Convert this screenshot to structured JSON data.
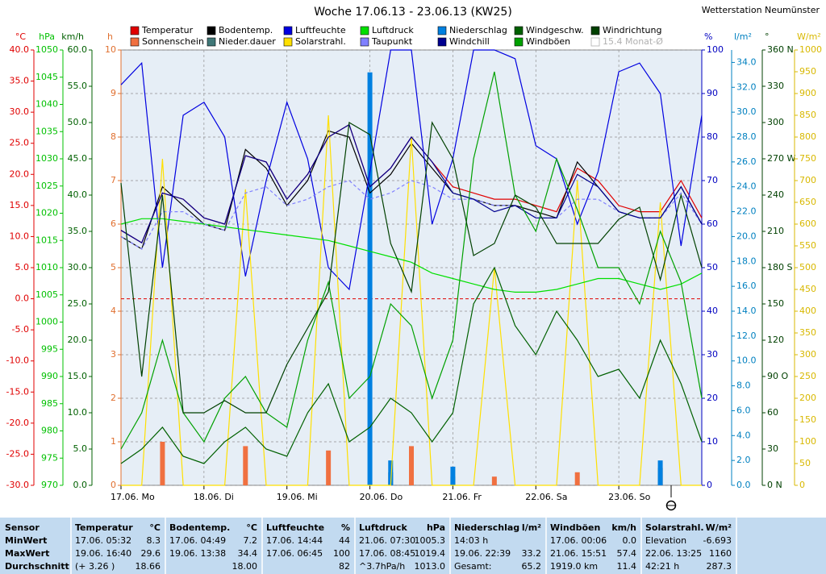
{
  "chart_data": {
    "type": "line",
    "title": "Woche 17.06.13 - 23.06.13 (KW25)",
    "station": "Wetterstation Neumünster",
    "grid": true,
    "xlim": [
      0,
      168
    ],
    "xticks": [
      {
        "value": 0,
        "label": "17.06. Mo"
      },
      {
        "value": 24,
        "label": "18.06. Di"
      },
      {
        "value": 48,
        "label": "19.06. Mi"
      },
      {
        "value": 72,
        "label": "20.06. Do"
      },
      {
        "value": 96,
        "label": "21.06. Fr"
      },
      {
        "value": 120,
        "label": "22.06. Sa"
      },
      {
        "value": 144,
        "label": "23.06. So"
      }
    ],
    "x": [
      0,
      6,
      12,
      18,
      24,
      30,
      36,
      42,
      48,
      54,
      60,
      66,
      72,
      78,
      84,
      90,
      96,
      102,
      108,
      114,
      120,
      126,
      132,
      138,
      144,
      150,
      156,
      162,
      168
    ],
    "axes": [
      {
        "label": "°C",
        "side": "left",
        "color": "#e00000",
        "lim": [
          -30,
          40
        ],
        "ticks": [
          {
            "value": 40,
            "label": "40.0"
          },
          {
            "value": 35,
            "label": "35.0"
          },
          {
            "value": 30,
            "label": "30.0"
          },
          {
            "value": 25,
            "label": "25.0"
          },
          {
            "value": 20,
            "label": "20.0"
          },
          {
            "value": 15,
            "label": "15.0"
          },
          {
            "value": 10,
            "label": "10.0"
          },
          {
            "value": 5,
            "label": "5.0"
          },
          {
            "value": 0,
            "label": "0.0"
          },
          {
            "value": -5,
            "label": "-5.0"
          },
          {
            "value": -10,
            "label": "-10.0"
          },
          {
            "value": -15,
            "label": "-15.0"
          },
          {
            "value": -20,
            "label": "-20.0"
          },
          {
            "value": -25,
            "label": "-25.0"
          },
          {
            "value": -30,
            "label": "-30.0"
          }
        ]
      },
      {
        "label": "hPa",
        "side": "left",
        "color": "#00c000",
        "lim": [
          970,
          1050
        ],
        "ticks": [
          1050,
          1045,
          1040,
          1035,
          1030,
          1025,
          1020,
          1015,
          1010,
          1005,
          1000,
          995,
          990,
          985,
          980,
          975,
          970
        ]
      },
      {
        "label": "km/h",
        "side": "left",
        "color": "#006000",
        "lim": [
          0,
          60
        ],
        "ticks": [
          {
            "value": 60,
            "label": "60.0"
          },
          {
            "value": 55,
            "label": "55.0"
          },
          {
            "value": 50,
            "label": "50.0"
          },
          {
            "value": 45,
            "label": "45.0"
          },
          {
            "value": 40,
            "label": "40.0"
          },
          {
            "value": 35,
            "label": "35.0"
          },
          {
            "value": 30,
            "label": "30.0"
          },
          {
            "value": 25,
            "label": "25.0"
          },
          {
            "value": 20,
            "label": "20.0"
          },
          {
            "value": 15,
            "label": "15.0"
          },
          {
            "value": 10,
            "label": "10.0"
          },
          {
            "value": 5,
            "label": "5.0"
          },
          {
            "value": 0,
            "label": "0.0"
          }
        ]
      },
      {
        "label": "h",
        "side": "left",
        "color": "#e07030",
        "lim": [
          0,
          10
        ],
        "ticks": [
          10,
          9,
          8,
          7,
          6,
          5,
          4,
          3,
          2,
          1,
          0
        ]
      },
      {
        "label": "%",
        "side": "right",
        "color": "#0000c0",
        "lim": [
          0,
          100
        ],
        "ticks": [
          100,
          90,
          80,
          70,
          60,
          50,
          40,
          30,
          20,
          10,
          0
        ]
      },
      {
        "label": "l/m²",
        "side": "right",
        "color": "#0080c0",
        "lim": [
          0,
          35
        ],
        "ticks": [
          {
            "value": 34,
            "label": "34.0"
          },
          {
            "value": 32,
            "label": "32.0"
          },
          {
            "value": 30,
            "label": "30.0"
          },
          {
            "value": 28,
            "label": "28.0"
          },
          {
            "value": 26,
            "label": "26.0"
          },
          {
            "value": 24,
            "label": "24.0"
          },
          {
            "value": 22,
            "label": "22.0"
          },
          {
            "value": 20,
            "label": "20.0"
          },
          {
            "value": 18,
            "label": "18.0"
          },
          {
            "value": 16,
            "label": "16.0"
          },
          {
            "value": 14,
            "label": "14.0"
          },
          {
            "value": 12,
            "label": "12.0"
          },
          {
            "value": 10,
            "label": "10.0"
          },
          {
            "value": 8,
            "label": "8.0"
          },
          {
            "value": 6,
            "label": "6.0"
          },
          {
            "value": 4,
            "label": "4.0"
          },
          {
            "value": 2,
            "label": "2.0"
          },
          {
            "value": 0,
            "label": "0.0"
          }
        ]
      },
      {
        "label": "°",
        "side": "right",
        "color": "#004000",
        "lim": [
          0,
          360
        ],
        "ticks": [
          {
            "value": 360,
            "label": "360 N"
          },
          330,
          300,
          {
            "value": 270,
            "label": "270 W"
          },
          240,
          210,
          {
            "value": 180,
            "label": "180 S"
          },
          150,
          120,
          {
            "value": 90,
            "label": "90 O"
          },
          60,
          30,
          {
            "value": 0,
            "label": "0 N"
          }
        ]
      },
      {
        "label": "W/m²",
        "side": "right",
        "color": "#d8b800",
        "lim": [
          0,
          1000
        ],
        "ticks": [
          1000,
          950,
          900,
          850,
          800,
          750,
          700,
          650,
          600,
          550,
          500,
          450,
          400,
          350,
          300,
          250,
          200,
          150,
          100,
          50,
          0
        ]
      }
    ],
    "reference_line": {
      "axis": 0,
      "value": 0,
      "color": "#e00000"
    },
    "series": [
      {
        "name": "Temperatur",
        "color": "#e00000",
        "axis": 0,
        "style": "line",
        "values": [
          11,
          9,
          17,
          16,
          13,
          12,
          23,
          22,
          16,
          20,
          26,
          28,
          18,
          21,
          26,
          22,
          18,
          17,
          16,
          16,
          15,
          14,
          21,
          19,
          15,
          14,
          14,
          19,
          13
        ]
      },
      {
        "name": "Sonnenschein",
        "color": "#f07040",
        "axis": 3,
        "style": "bar",
        "values": [
          0,
          0,
          1,
          0,
          0,
          0,
          0.9,
          0,
          0,
          0,
          0.8,
          0,
          0,
          0,
          0.9,
          0,
          0,
          0,
          0.2,
          0,
          0,
          0,
          0.3,
          0,
          0,
          0,
          0.4,
          0,
          0
        ]
      },
      {
        "name": "Bodentemp.",
        "color": "#000000",
        "axis": 0,
        "style": "line",
        "values": [
          10,
          8,
          18,
          15,
          12,
          11,
          24,
          21,
          15,
          19,
          27,
          26,
          17,
          20,
          25,
          21,
          17,
          16,
          15,
          15,
          14,
          13,
          22,
          18,
          14,
          13,
          13,
          18,
          12
        ]
      },
      {
        "name": "Nieder.dauer",
        "color": "#407878",
        "axis": 3,
        "style": "bar",
        "values": [
          0,
          0,
          0,
          0,
          0,
          0,
          0,
          0,
          0,
          0,
          0,
          0,
          0,
          0.3,
          0,
          0,
          0.2,
          0,
          0,
          0,
          0,
          0,
          0,
          0,
          0,
          0,
          0.4,
          0,
          0
        ]
      },
      {
        "name": "Luftfeuchte",
        "color": "#0000e0",
        "axis": 4,
        "style": "line",
        "values": [
          92,
          97,
          50,
          85,
          88,
          80,
          48,
          70,
          88,
          75,
          50,
          45,
          72,
          100,
          100,
          60,
          75,
          100,
          100,
          98,
          78,
          75,
          60,
          72,
          95,
          97,
          90,
          55,
          85
        ]
      },
      {
        "name": "Solarstrahl.",
        "color": "#ffe000",
        "axis": 7,
        "style": "line",
        "values": [
          0,
          0,
          750,
          0,
          0,
          0,
          680,
          0,
          0,
          0,
          850,
          0,
          0,
          0,
          800,
          0,
          0,
          0,
          500,
          0,
          0,
          0,
          700,
          0,
          0,
          0,
          650,
          0,
          0
        ]
      },
      {
        "name": "Luftdruck",
        "color": "#00e000",
        "axis": 1,
        "style": "line",
        "values": [
          1018,
          1019,
          1019,
          1018.5,
          1018,
          1017.5,
          1017,
          1016.5,
          1016,
          1015.5,
          1015,
          1014,
          1013,
          1012,
          1011,
          1009,
          1008,
          1007,
          1006,
          1005.5,
          1005.5,
          1006,
          1007,
          1008,
          1008,
          1007,
          1006,
          1007,
          1009
        ]
      },
      {
        "name": "Taupunkt",
        "color": "#8080ff",
        "axis": 0,
        "style": "dashed",
        "values": [
          10,
          8,
          14,
          14,
          12,
          11,
          17,
          18,
          15,
          16,
          18,
          19,
          16,
          17,
          19,
          18,
          16,
          16,
          15,
          15,
          13,
          13,
          16,
          16,
          14,
          13,
          13,
          17,
          12
        ]
      },
      {
        "name": "Niederschlag",
        "color": "#0080e0",
        "axis": 5,
        "style": "bar",
        "values": [
          0,
          0,
          0,
          0,
          0,
          0,
          0,
          0,
          0,
          0,
          0,
          0,
          33.2,
          2,
          0,
          0,
          1.5,
          0,
          0,
          0,
          0,
          0,
          0,
          0,
          0,
          0,
          2,
          0,
          0
        ]
      },
      {
        "name": "Windchill",
        "color": "#000090",
        "axis": 0,
        "style": "line",
        "values": [
          11,
          9,
          17,
          16,
          13,
          12,
          23,
          22,
          16,
          20,
          26,
          28,
          18,
          21,
          26,
          22,
          17,
          16,
          14,
          15,
          13,
          13,
          20,
          18,
          14,
          13,
          13,
          18,
          12
        ]
      },
      {
        "name": "Windgeschw.",
        "color": "#006000",
        "axis": 2,
        "style": "line",
        "values": [
          3,
          5,
          8,
          4,
          3,
          6,
          8,
          5,
          4,
          10,
          14,
          6,
          8,
          12,
          10,
          6,
          10,
          25,
          30,
          22,
          18,
          24,
          20,
          15,
          16,
          12,
          20,
          14,
          6
        ]
      },
      {
        "name": "Windböen",
        "color": "#00a000",
        "axis": 2,
        "style": "line",
        "values": [
          5,
          10,
          20,
          10,
          6,
          12,
          15,
          10,
          8,
          20,
          28,
          12,
          15,
          25,
          22,
          12,
          20,
          45,
          57,
          40,
          35,
          45,
          38,
          30,
          30,
          25,
          35,
          28,
          12
        ]
      },
      {
        "name": "Windrichtung",
        "color": "#004000",
        "axis": 6,
        "style": "line",
        "values": [
          250,
          90,
          240,
          60,
          60,
          70,
          60,
          60,
          100,
          130,
          160,
          300,
          290,
          200,
          160,
          300,
          270,
          190,
          200,
          240,
          230,
          200,
          200,
          200,
          220,
          230,
          170,
          240,
          180
        ]
      }
    ],
    "legend_note": "15.4 Monat-Ø"
  },
  "stats": {
    "labels": [
      "Sensor",
      "MinWert",
      "MaxWert",
      "Durchschnitt"
    ],
    "columns": [
      {
        "name": "Temperatur",
        "unit": "°C",
        "rows": [
          {
            "left": "17.06.  05:32",
            "right": "8.3"
          },
          {
            "left": "19.06.  16:40",
            "right": "29.6"
          },
          {
            "left": "(+ 3.26 )",
            "right": "18.66"
          }
        ]
      },
      {
        "name": "Bodentemp.",
        "unit": "°C",
        "rows": [
          {
            "left": "17.06.  04:49",
            "right": "7.2"
          },
          {
            "left": "19.06.  13:38",
            "right": "34.4"
          },
          {
            "right": "18.00"
          }
        ]
      },
      {
        "name": "Luftfeuchte",
        "unit": "%",
        "rows": [
          {
            "left": "17.06.  14:44",
            "right": "44"
          },
          {
            "left": "17.06.  06:45",
            "right": "100"
          },
          {
            "right": "82"
          }
        ]
      },
      {
        "name": "Luftdruck",
        "unit": "hPa",
        "rows": [
          {
            "left": "21.06.  07:30",
            "right": "1005.3"
          },
          {
            "left": "17.06.  08:45",
            "right": "1019.4"
          },
          {
            "left": "^3.7hPa/h",
            "right": "1013.0"
          }
        ]
      },
      {
        "name": "Niederschlag",
        "unit": "l/m²",
        "rows": [
          {
            "left": "14:03 h"
          },
          {
            "left": "19.06.  22:39",
            "right": "33.2"
          },
          {
            "left": "Gesamt:",
            "right": "65.2"
          }
        ]
      },
      {
        "name": "Windböen",
        "unit": "km/h",
        "rows": [
          {
            "left": "17.06.  00:06",
            "right": "0.0"
          },
          {
            "left": "21.06.  15:51",
            "right": "57.4"
          },
          {
            "left": "1919.0 km",
            "right": "11.4"
          }
        ]
      },
      {
        "name": "Solarstrahl.",
        "unit": "W/m²",
        "rows": [
          {
            "left": "Elevation",
            "right": "-6.693"
          },
          {
            "left": "22.06.  13:25",
            "right": "1160"
          },
          {
            "left": "42:21 h",
            "right": "287.3"
          }
        ]
      }
    ]
  }
}
